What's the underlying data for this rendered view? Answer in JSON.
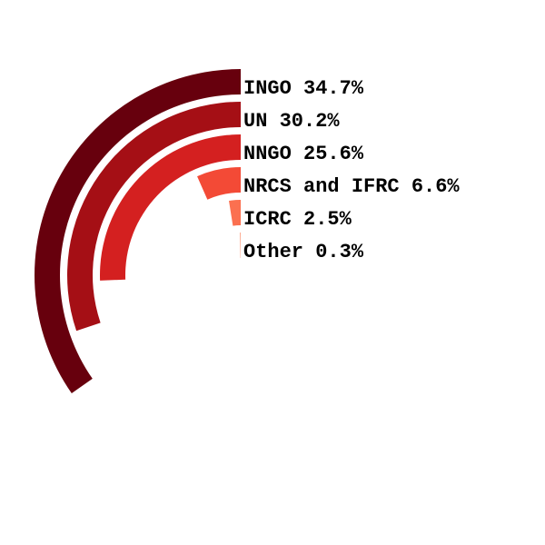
{
  "chart_data": {
    "type": "radial-bar",
    "title": "",
    "max_value": 100,
    "series": [
      {
        "label": "INGO 34.7%",
        "value": 34.7,
        "color": "#67000d"
      },
      {
        "label": "UN 30.2%",
        "value": 30.2,
        "color": "#a50f15"
      },
      {
        "label": "NNGO 25.6%",
        "value": 25.6,
        "color": "#d42020"
      },
      {
        "label": "NRCS and IFRC 6.6%",
        "value": 6.6,
        "color": "#f34a36"
      },
      {
        "label": "ICRC 2.5%",
        "value": 2.5,
        "color": "#fb7050"
      },
      {
        "label": "Other 0.3%",
        "value": 0.3,
        "color": "#fc9e80"
      }
    ]
  }
}
